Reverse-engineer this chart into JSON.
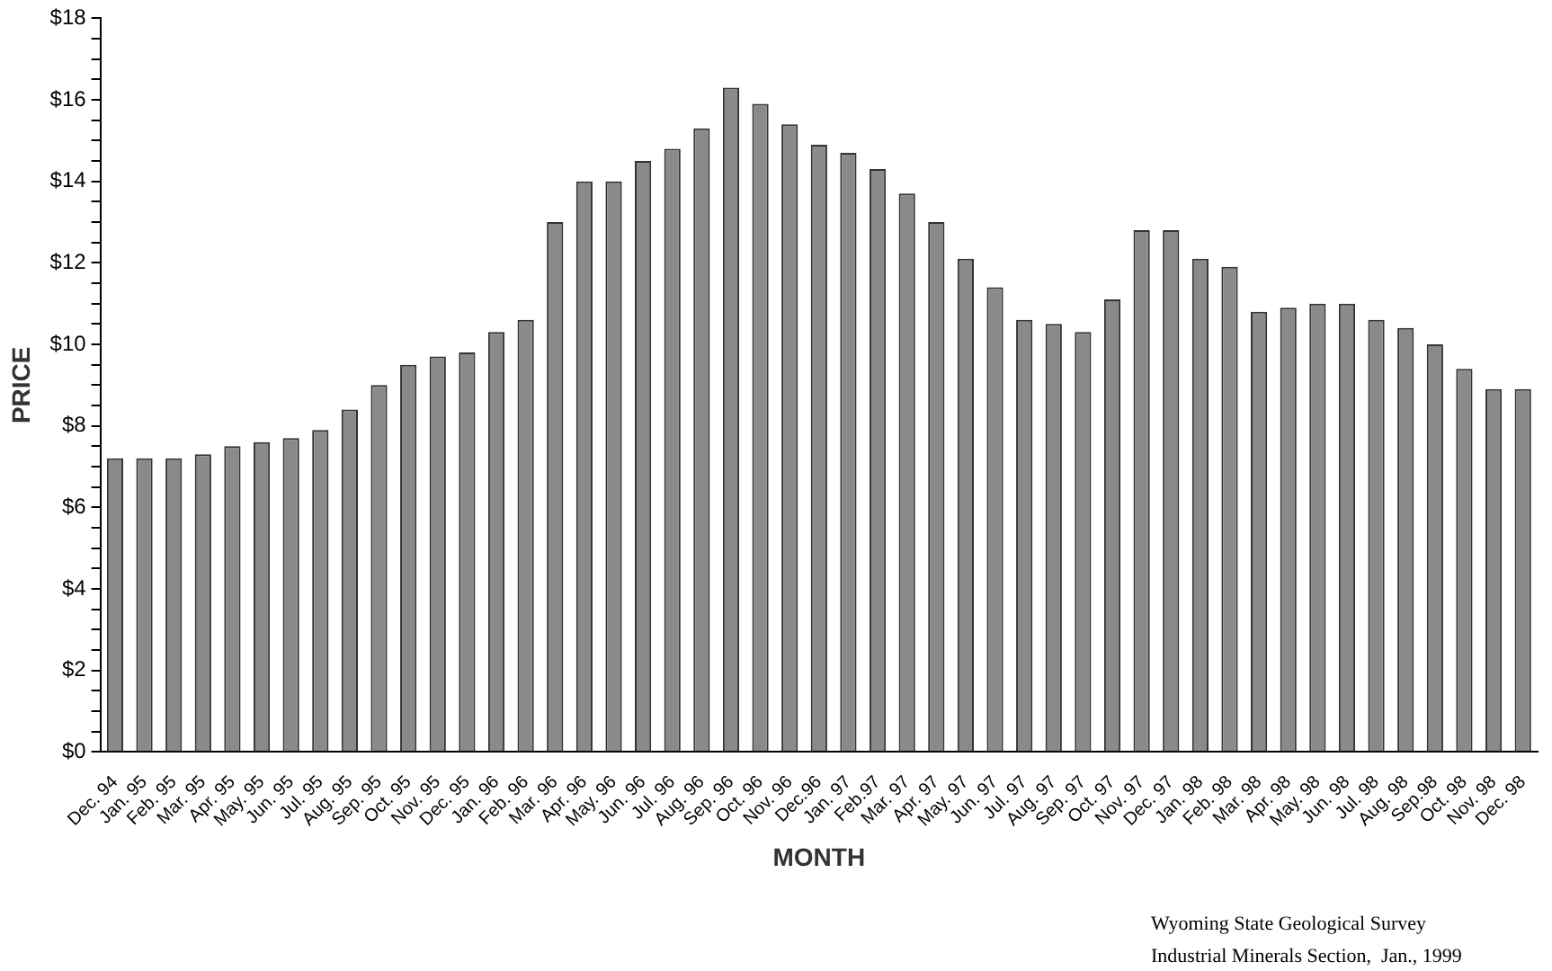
{
  "chart_data": {
    "type": "bar",
    "xlabel": "MONTH",
    "ylabel": "PRICE",
    "categories": [
      "Dec. 94",
      "Jan. 95",
      "Feb. 95",
      "Mar. 95",
      "Apr. 95",
      "May. 95",
      "Jun. 95",
      "Jul. 95",
      "Aug. 95",
      "Sep. 95",
      "Oct. 95",
      "Nov. 95",
      "Dec. 95",
      "Jan. 96",
      "Feb. 96",
      "Mar. 96",
      "Apr. 96",
      "May. 96",
      "Jun. 96",
      "Jul. 96",
      "Aug. 96",
      "Sep. 96",
      "Oct. 96",
      "Nov. 96",
      "Dec.96",
      "Jan. 97",
      "Feb.97",
      "Mar. 97",
      "Apr. 97",
      "May. 97",
      "Jun. 97",
      "Jul. 97",
      "Aug. 97",
      "Sep. 97",
      "Oct. 97",
      "Nov. 97",
      "Dec. 97",
      "Jan. 98",
      "Feb. 98",
      "Mar. 98",
      "Apr. 98",
      "May. 98",
      "Jun. 98",
      "Jul. 98",
      "Aug. 98",
      "Sep.98",
      "Oct. 98",
      "Nov. 98",
      "Dec. 98"
    ],
    "values": [
      7.2,
      7.2,
      7.2,
      7.3,
      7.5,
      7.6,
      7.7,
      7.9,
      8.4,
      9.0,
      9.5,
      9.7,
      9.8,
      10.3,
      10.6,
      13.0,
      14.0,
      14.0,
      14.5,
      14.8,
      15.3,
      16.3,
      15.9,
      15.4,
      14.9,
      14.7,
      14.3,
      13.7,
      13.0,
      12.1,
      11.4,
      10.6,
      10.5,
      10.3,
      11.1,
      12.8,
      12.8,
      12.1,
      11.9,
      10.8,
      10.9,
      11.0,
      11.0,
      10.6,
      10.4,
      10.0,
      9.4,
      8.9,
      8.9
    ],
    "color": "#8a8a8a",
    "ylim": [
      0,
      18
    ],
    "yticks": [
      {
        "value": 0,
        "label": "$0"
      },
      {
        "value": 0.5,
        "label": null
      },
      {
        "value": 1,
        "label": null
      },
      {
        "value": 1.5,
        "label": null
      },
      {
        "value": 2,
        "label": "$2"
      },
      {
        "value": 2.5,
        "label": null
      },
      {
        "value": 3,
        "label": null
      },
      {
        "value": 3.5,
        "label": null
      },
      {
        "value": 4,
        "label": "$4"
      },
      {
        "value": 4.5,
        "label": null
      },
      {
        "value": 5,
        "label": null
      },
      {
        "value": 5.5,
        "label": null
      },
      {
        "value": 6,
        "label": "$6"
      },
      {
        "value": 6.5,
        "label": null
      },
      {
        "value": 7,
        "label": null
      },
      {
        "value": 7.5,
        "label": null
      },
      {
        "value": 8,
        "label": "$8"
      },
      {
        "value": 8.5,
        "label": null
      },
      {
        "value": 9,
        "label": null
      },
      {
        "value": 9.5,
        "label": null
      },
      {
        "value": 10,
        "label": "$10"
      },
      {
        "value": 10.5,
        "label": null
      },
      {
        "value": 11,
        "label": null
      },
      {
        "value": 11.5,
        "label": null
      },
      {
        "value": 12,
        "label": "$12"
      },
      {
        "value": 12.5,
        "label": null
      },
      {
        "value": 13,
        "label": null
      },
      {
        "value": 13.5,
        "label": null
      },
      {
        "value": 14,
        "label": "$14"
      },
      {
        "value": 14.5,
        "label": null
      },
      {
        "value": 15,
        "label": null
      },
      {
        "value": 15.5,
        "label": null
      },
      {
        "value": 16,
        "label": "$16"
      },
      {
        "value": 16.5,
        "label": null
      },
      {
        "value": 17,
        "label": null
      },
      {
        "value": 17.5,
        "label": null
      },
      {
        "value": 18,
        "label": "$18"
      }
    ],
    "grid": false,
    "annotations": [
      "Wyoming State Geological Survey",
      "Industrial Minerals Section,  Jan., 1999"
    ]
  }
}
